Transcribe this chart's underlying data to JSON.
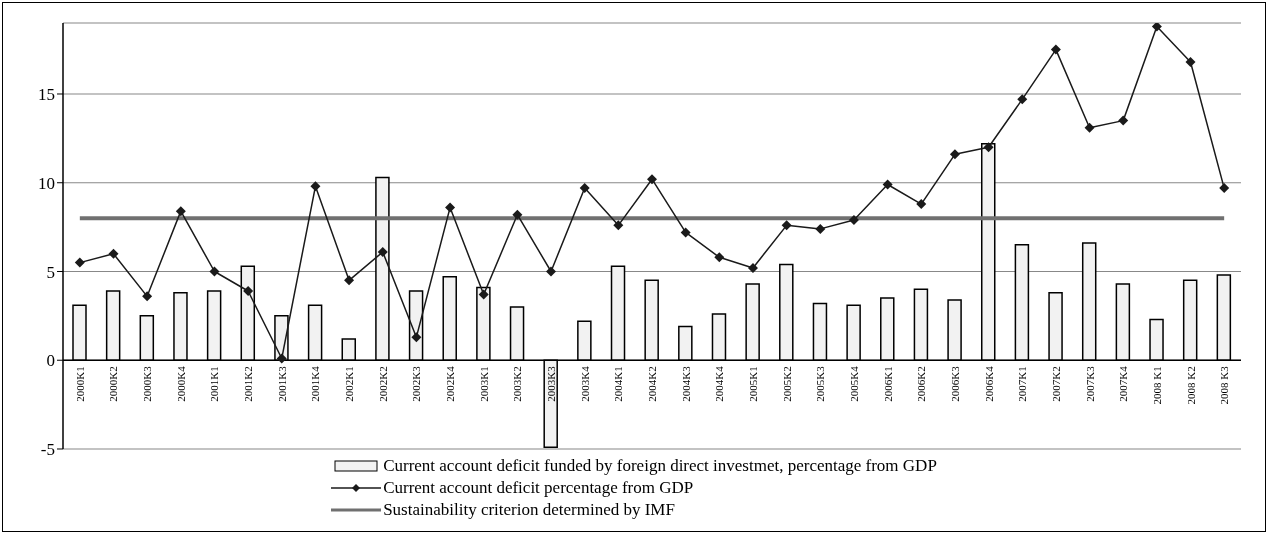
{
  "chart_data": {
    "type": "bar",
    "categories": [
      "2000K1",
      "2000K2",
      "2000K3",
      "2000K4",
      "2001K1",
      "2001K2",
      "2001K3",
      "2001K4",
      "2002K1",
      "2002K2",
      "2002K3",
      "2002K4",
      "2003K1",
      "2003K2",
      "2003K3",
      "2003K4",
      "2004K1",
      "2004K2",
      "2004K3",
      "2004K4",
      "2005K1",
      "2005K2",
      "2005K3",
      "2005K4",
      "2006K1",
      "2006K2",
      "2006K3",
      "2006K4",
      "2007K1",
      "2007K2",
      "2007K3",
      "2007K4",
      "2008 K1",
      "2008 K2",
      "2008 K3"
    ],
    "series": [
      {
        "name": "Current account deficit funded by foreign direct investmet, percentage from GDP",
        "color": "#f2f2f2",
        "values": [
          3.1,
          3.9,
          2.5,
          3.8,
          3.9,
          5.3,
          2.5,
          3.1,
          1.2,
          10.3,
          3.9,
          4.7,
          4.1,
          3.0,
          -4.9,
          2.2,
          5.3,
          4.5,
          1.9,
          2.6,
          4.3,
          5.4,
          3.2,
          3.1,
          3.5,
          4.0,
          3.4,
          12.2,
          6.5,
          3.8,
          6.6,
          4.3,
          2.3,
          4.5,
          4.8
        ]
      },
      {
        "name": "Current account deficit percentage from GDP",
        "type": "line",
        "color": "#1a1a1a",
        "marker": "diamond",
        "values": [
          5.5,
          6.0,
          3.6,
          8.4,
          5.0,
          3.9,
          0.1,
          9.8,
          4.5,
          6.1,
          1.3,
          8.6,
          3.7,
          8.2,
          5.0,
          9.7,
          7.6,
          10.2,
          7.2,
          5.8,
          5.2,
          7.6,
          7.4,
          7.9,
          9.9,
          8.8,
          11.6,
          12.0,
          14.7,
          17.5,
          13.1,
          13.5,
          18.8,
          16.8,
          9.7
        ]
      }
    ],
    "ref_lines": [
      {
        "axis": "y",
        "value": 8,
        "label": "Sustainability criterion determined by IMF",
        "color": "#707070"
      }
    ],
    "ylim": [
      -5,
      19
    ],
    "yticks": [
      -5,
      0,
      5,
      10,
      15
    ],
    "grid": "y",
    "legend": "bottom"
  }
}
